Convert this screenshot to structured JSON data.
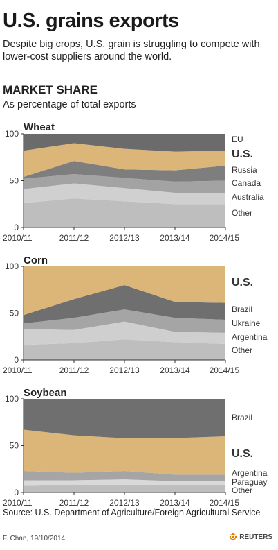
{
  "title": "U.S. grains exports",
  "subtitle": "Despite big crops, U.S. grain is struggling to compete with lower-cost suppliers around the world.",
  "section_title": "MARKET SHARE",
  "section_subtitle": "As percentage of total exports",
  "source": "Source: U.S. Department of Agriculture/Foreign Agricultural Service",
  "credit": "F. Chan, 19/10/2014",
  "brand": "REUTERS",
  "colors": {
    "us": "#dcb578",
    "eu": "#6b6b6b",
    "russia": "#7e7e7e",
    "canada": "#a3a3a3",
    "australia": "#d0d0d0",
    "other": "#bebebe",
    "brazil": "#6f6f6f",
    "ukraine": "#a5a5a5",
    "argentina": "#cfcfcf",
    "paraguay": "#d9d9d9"
  },
  "chart_data": [
    {
      "type": "area",
      "title": "Wheat",
      "x": [
        "2010/11",
        "2011/12",
        "2012/13",
        "2013/14",
        "2014/15"
      ],
      "ylim": [
        0,
        100
      ],
      "yticks": [
        0,
        50,
        100
      ],
      "stacked": true,
      "series": [
        {
          "name": "Other",
          "color": "#bebebe",
          "values": [
            26,
            31,
            28,
            25,
            25
          ]
        },
        {
          "name": "Australia",
          "color": "#d0d0d0",
          "values": [
            15,
            16,
            14,
            12,
            12
          ]
        },
        {
          "name": "Canada",
          "color": "#a3a3a3",
          "values": [
            11,
            10,
            11,
            12,
            13
          ]
        },
        {
          "name": "Russia",
          "color": "#7e7e7e",
          "values": [
            2,
            14,
            9,
            12,
            16
          ]
        },
        {
          "name": "U.S.",
          "color": "#dcb578",
          "values": [
            28,
            19,
            22,
            20,
            16
          ]
        },
        {
          "name": "EU",
          "color": "#6b6b6b",
          "values": [
            18,
            10,
            16,
            19,
            18
          ]
        }
      ]
    },
    {
      "type": "area",
      "title": "Corn",
      "x": [
        "2010/11",
        "2011/12",
        "2012/13",
        "2013/14",
        "2014/15"
      ],
      "ylim": [
        0,
        100
      ],
      "yticks": [
        0,
        50,
        100
      ],
      "stacked": true,
      "series": [
        {
          "name": "Other",
          "color": "#bebebe",
          "values": [
            16,
            18,
            22,
            19,
            17
          ]
        },
        {
          "name": "Argentina",
          "color": "#cfcfcf",
          "values": [
            17,
            14,
            19,
            11,
            12
          ]
        },
        {
          "name": "Ukraine",
          "color": "#a5a5a5",
          "values": [
            6,
            13,
            13,
            15,
            14
          ]
        },
        {
          "name": "Brazil",
          "color": "#6f6f6f",
          "values": [
            9,
            20,
            26,
            17,
            18
          ]
        },
        {
          "name": "U.S.",
          "color": "#dcb578",
          "values": [
            52,
            35,
            20,
            38,
            39
          ]
        }
      ]
    },
    {
      "type": "area",
      "title": "Soybean",
      "x": [
        "2010/11",
        "2011/12",
        "2012/13",
        "2013/14",
        "2014/15"
      ],
      "ylim": [
        0,
        100
      ],
      "yticks": [
        0,
        50,
        100
      ],
      "stacked": true,
      "series": [
        {
          "name": "Other",
          "color": "#bebebe",
          "values": [
            7,
            8,
            8,
            8,
            8
          ]
        },
        {
          "name": "Paraguay",
          "color": "#d9d9d9",
          "values": [
            6,
            5,
            6,
            4,
            4
          ]
        },
        {
          "name": "Argentina",
          "color": "#a5a5a5",
          "values": [
            10,
            8,
            9,
            7,
            7
          ]
        },
        {
          "name": "U.S.",
          "color": "#dcb578",
          "values": [
            44,
            40,
            35,
            39,
            41
          ]
        },
        {
          "name": "Brazil",
          "color": "#6f6f6f",
          "values": [
            33,
            39,
            42,
            42,
            40
          ]
        }
      ]
    }
  ]
}
